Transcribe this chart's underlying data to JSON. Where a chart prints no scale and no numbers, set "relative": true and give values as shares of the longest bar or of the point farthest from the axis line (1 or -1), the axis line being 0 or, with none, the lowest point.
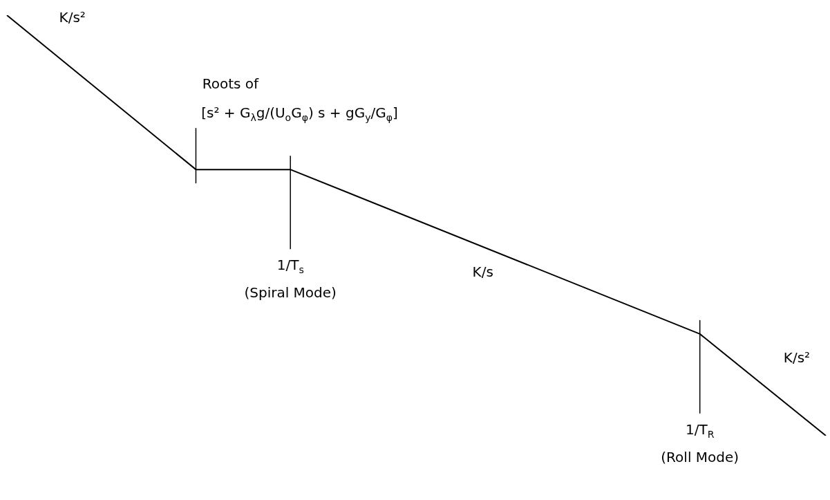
{
  "chart_data": {
    "type": "line",
    "relative": true,
    "color": "#000000",
    "categories": [
      null,
      null,
      null,
      null,
      null,
      null,
      null,
      null,
      null,
      null,
      null,
      null,
      null,
      null,
      null,
      null,
      null,
      null,
      null,
      null,
      null,
      null,
      null,
      null,
      null,
      null,
      null
    ],
    "values": [
      1,
      null,
      null,
      null,
      null,
      null,
      0.633,
      null,
      null,
      0.633,
      null,
      null,
      null,
      null,
      null,
      null,
      null,
      null,
      null,
      null,
      null,
      null,
      0.242,
      null,
      null,
      null,
      0
    ],
    "annotations": [
      "K/s²",
      "Roots of\n[s² + G$_{λ}$g/(U$_{o}$G$_{φ}$) s + gG$_{y}$/G$_{φ}$]",
      "1/T$_{s}$\n(Spiral Mode)",
      "K/s",
      "1/T$_{R}$\n(Roll Mode)",
      "K/s²"
    ]
  }
}
